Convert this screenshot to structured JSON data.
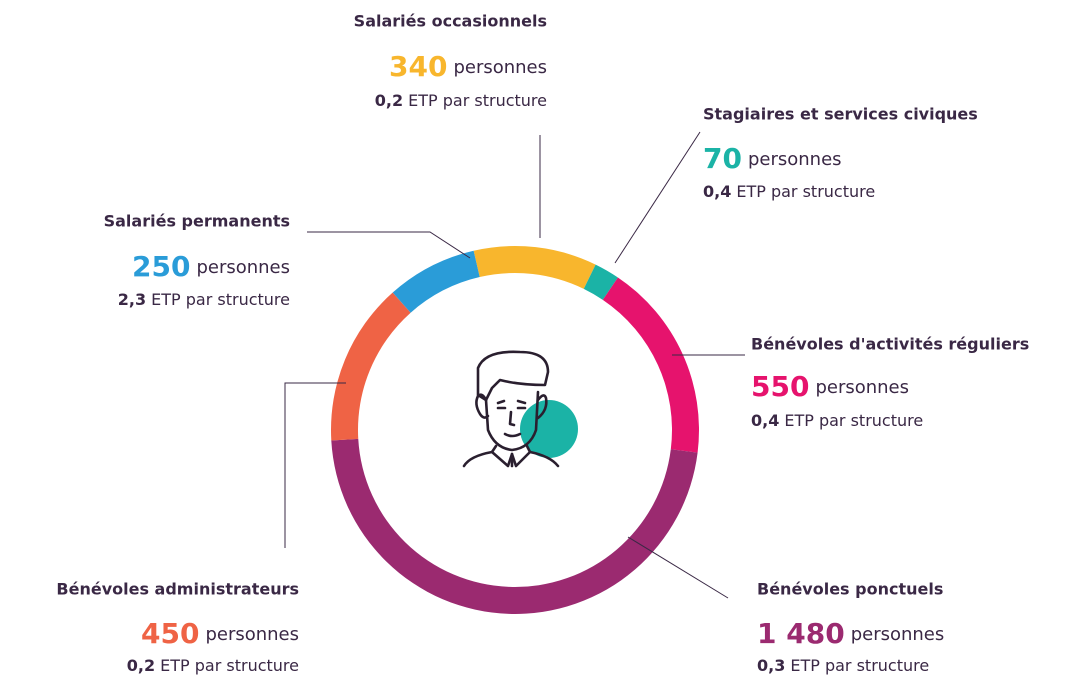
{
  "chart_data": {
    "type": "donut",
    "categories": [
      "Salariés occasionnels",
      "Stagiaires et services civiques",
      "Bénévoles d'activités réguliers",
      "Bénévoles ponctuels",
      "Bénévoles administrateurs",
      "Salariés permanents"
    ],
    "values": [
      340,
      70,
      550,
      1480,
      450,
      250
    ],
    "value_labels": [
      "340",
      "70",
      "550",
      "1 480",
      "450",
      "250"
    ],
    "colors": [
      "#f8b62d",
      "#1bb3a6",
      "#e6136d",
      "#9b2a70",
      "#ef6345",
      "#2a9cd8"
    ],
    "unit": "personnes",
    "etp": [
      "0,2",
      "0,4",
      "0,4",
      "0,3",
      "0,2",
      "2,3"
    ],
    "etp_suffix": "ETP par structure"
  }
}
